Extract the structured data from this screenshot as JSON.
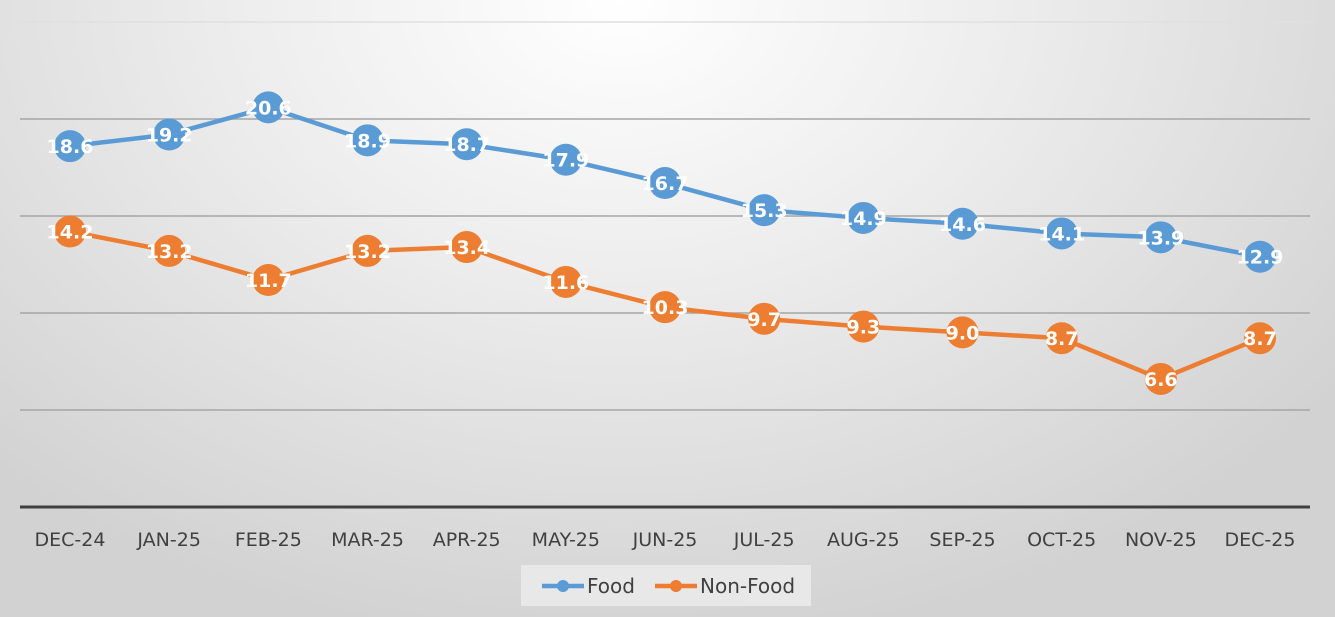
{
  "chart_data": {
    "type": "line",
    "categories": [
      "DEC-24",
      "JAN-25",
      "FEB-25",
      "MAR-25",
      "APR-25",
      "MAY-25",
      "JUN-25",
      "JUL-25",
      "AUG-25",
      "SEP-25",
      "OCT-25",
      "NOV-25",
      "DEC-25"
    ],
    "series": [
      {
        "name": "Food",
        "color": "#5b9bd5",
        "values": [
          18.6,
          19.2,
          20.6,
          18.9,
          18.7,
          17.9,
          16.7,
          15.3,
          14.9,
          14.6,
          14.1,
          13.9,
          12.9
        ]
      },
      {
        "name": "Non-Food",
        "color": "#ed7d31",
        "values": [
          14.2,
          13.2,
          11.7,
          13.2,
          13.4,
          11.6,
          10.3,
          9.7,
          9.3,
          9.0,
          8.7,
          6.6,
          8.7
        ]
      }
    ],
    "ylim": [
      0,
      25
    ],
    "ygrid_step": 5,
    "grid": true,
    "y_tick_labels_shown": false,
    "data_labels": true,
    "legend_position": "bottom"
  }
}
